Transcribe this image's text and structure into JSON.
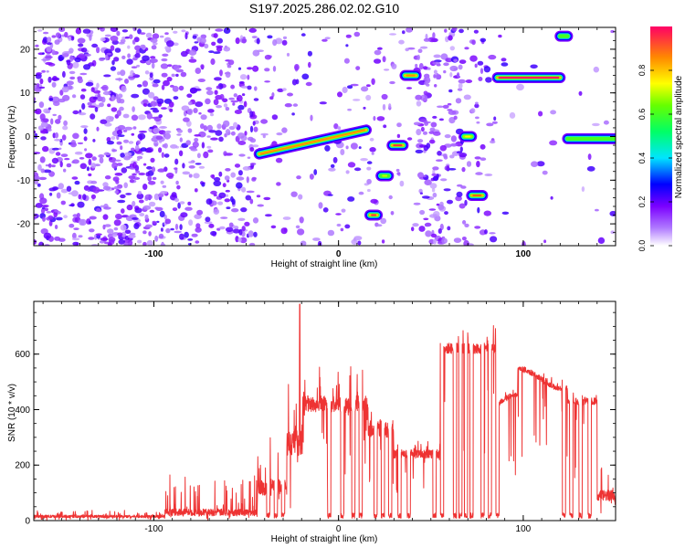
{
  "title": "S197.2025.286.02.02.G10",
  "colors": {
    "signal_line": "#ee3333",
    "axes": "#000000"
  },
  "chart_data": [
    {
      "type": "heatmap",
      "name": "spectrogram",
      "xlabel": "Height of straight line (km)",
      "ylabel": "Frequency (Hz)",
      "xlim": [
        -165,
        150
      ],
      "ylim": [
        -25,
        25
      ],
      "xticks": [
        -100,
        0,
        100
      ],
      "yticks": [
        -20,
        -10,
        0,
        10,
        20
      ],
      "colorbar": {
        "label": "Normalized spectral amplitude",
        "range": [
          0,
          1
        ],
        "ticks": [
          "0.0",
          "0.2",
          "0.4",
          "0.6",
          "0.8"
        ],
        "tick_values": [
          0,
          0.2,
          0.4,
          0.6,
          0.8
        ],
        "stops": [
          "#ffffff",
          "#7b00ff",
          "#0000ff",
          "#00ffff",
          "#00ff00",
          "#ffff00",
          "#ff8800",
          "#ff0066"
        ]
      },
      "noise_regions": [
        {
          "x0": -165,
          "x1": -97,
          "density": 1.0
        },
        {
          "x0": -97,
          "x1": -44,
          "density": 0.75
        },
        {
          "x0": -44,
          "x1": 15,
          "density": 0.22
        },
        {
          "x0": 15,
          "x1": 30,
          "density": 0.25
        },
        {
          "x0": 30,
          "x1": 42,
          "density": 0.15
        },
        {
          "x0": 42,
          "x1": 66,
          "density": 0.8
        },
        {
          "x0": 66,
          "x1": 85,
          "density": 0.35
        },
        {
          "x0": 85,
          "x1": 150,
          "density": 0.05
        }
      ],
      "ridges": [
        {
          "x0": -43,
          "x1": 15,
          "f0": -4,
          "f1": 1.5,
          "amp": 0.85
        },
        {
          "x0": 17,
          "x1": 21,
          "f0": -18,
          "f1": -18,
          "amp": 0.95
        },
        {
          "x0": 23,
          "x1": 27,
          "f0": -9,
          "f1": -9,
          "amp": 0.7
        },
        {
          "x0": 29,
          "x1": 35,
          "f0": -2,
          "f1": -2,
          "amp": 0.95
        },
        {
          "x0": 36,
          "x1": 42,
          "f0": 14,
          "f1": 14,
          "amp": 0.85
        },
        {
          "x0": 68,
          "x1": 72,
          "f0": 0,
          "f1": 0,
          "amp": 0.75
        },
        {
          "x0": 72,
          "x1": 78,
          "f0": -13.5,
          "f1": -13.5,
          "amp": 0.9
        },
        {
          "x0": 86,
          "x1": 120,
          "f0": 13.5,
          "f1": 13.5,
          "amp": 1.0
        },
        {
          "x0": 120,
          "x1": 124,
          "f0": 23,
          "f1": 23,
          "amp": 0.6
        },
        {
          "x0": 124,
          "x1": 150,
          "f0": -0.5,
          "f1": -0.5,
          "amp": 0.6
        }
      ]
    },
    {
      "type": "line",
      "name": "snr",
      "xlabel": "Height of straight line (km)",
      "ylabel": "SNR (10 * v/v)",
      "xlim": [
        -165,
        150
      ],
      "ylim": [
        0,
        790
      ],
      "xticks": [
        -100,
        0,
        100
      ],
      "yticks": [
        0,
        200,
        400,
        600
      ],
      "peak": {
        "x": -21,
        "y": 780
      },
      "segments": [
        {
          "x0": -165,
          "x1": -94,
          "base": 15,
          "spike": 20,
          "jitter": 10
        },
        {
          "x0": -94,
          "x1": -44,
          "base": 30,
          "spike": 130,
          "jitter": 25
        },
        {
          "x0": -44,
          "x1": -28,
          "base": 120,
          "spike": 230,
          "jitter": 60
        },
        {
          "x0": -28,
          "x1": -19,
          "base": 280,
          "spike": 250,
          "jitter": 90
        },
        {
          "x0": -19,
          "x1": 16,
          "base": 420,
          "spike": 120,
          "jitter": 60
        },
        {
          "x0": 16,
          "x1": 30,
          "base": 330,
          "spike": 80,
          "jitter": 60
        },
        {
          "x0": 30,
          "x1": 55,
          "base": 240,
          "spike": 40,
          "jitter": 30
        },
        {
          "x0": 55,
          "x1": 86,
          "base": 620,
          "spike": 80,
          "jitter": 40
        },
        {
          "x0": 86,
          "x1": 97,
          "base": 440,
          "spike": 30,
          "jitter": 20
        },
        {
          "x0": 97,
          "x1": 124,
          "base": 530,
          "spike": 30,
          "jitter": 20
        },
        {
          "x0": 124,
          "x1": 140,
          "base": 430,
          "spike": 40,
          "jitter": 25
        },
        {
          "x0": 140,
          "x1": 150,
          "base": 90,
          "spike": 120,
          "jitter": 40
        }
      ],
      "dips": [
        -38,
        -34,
        -30,
        -5,
        2,
        8,
        12,
        20,
        24,
        28,
        33,
        38,
        52,
        56,
        63,
        66,
        69,
        72,
        78,
        82,
        86,
        122,
        126,
        131,
        136
      ]
    }
  ]
}
